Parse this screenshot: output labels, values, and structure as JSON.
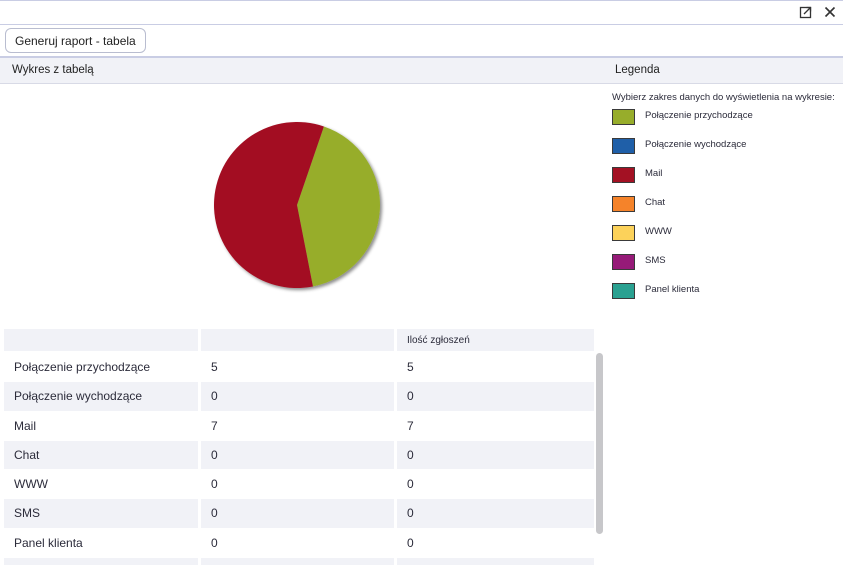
{
  "toolbar": {
    "generate_label": "Generuj raport - tabela"
  },
  "sections": {
    "chart_title": "Wykres z tabelą",
    "legend_title": "Legenda"
  },
  "legend": {
    "prompt": "Wybierz zakres danych do wyświetlenia na wykresie:",
    "items": [
      {
        "label": "Połączenie przychodzące",
        "color": "#97ad2b"
      },
      {
        "label": "Połączenie wychodzące",
        "color": "#1f5fa8"
      },
      {
        "label": "Mail",
        "color": "#a31123"
      },
      {
        "label": "Chat",
        "color": "#f5832a"
      },
      {
        "label": "WWW",
        "color": "#fcd25a"
      },
      {
        "label": "SMS",
        "color": "#961a78"
      },
      {
        "label": "Panel klienta",
        "color": "#2aa191"
      }
    ]
  },
  "chart_data": {
    "type": "pie",
    "categories": [
      "Połączenie przychodzące",
      "Połączenie wychodzące",
      "Mail",
      "Chat",
      "WWW",
      "SMS",
      "Panel klienta"
    ],
    "values": [
      5,
      0,
      7,
      0,
      0,
      0,
      0
    ],
    "colors": [
      "#97ad2b",
      "#1f5fa8",
      "#a31123",
      "#f5832a",
      "#fcd25a",
      "#961a78",
      "#2aa191"
    ]
  },
  "table": {
    "headers": [
      "",
      "",
      "Ilość zgłoszeń"
    ],
    "rows": [
      [
        "Połączenie przychodzące",
        "5",
        "5"
      ],
      [
        "Połączenie wychodzące",
        "0",
        "0"
      ],
      [
        "Mail",
        "7",
        "7"
      ],
      [
        "Chat",
        "0",
        "0"
      ],
      [
        "WWW",
        "0",
        "0"
      ],
      [
        "SMS",
        "0",
        "0"
      ],
      [
        "Panel klienta",
        "0",
        "0"
      ],
      [
        "",
        "",
        ""
      ]
    ]
  },
  "icons": {
    "popout": "popout-icon",
    "close": "close-icon"
  }
}
